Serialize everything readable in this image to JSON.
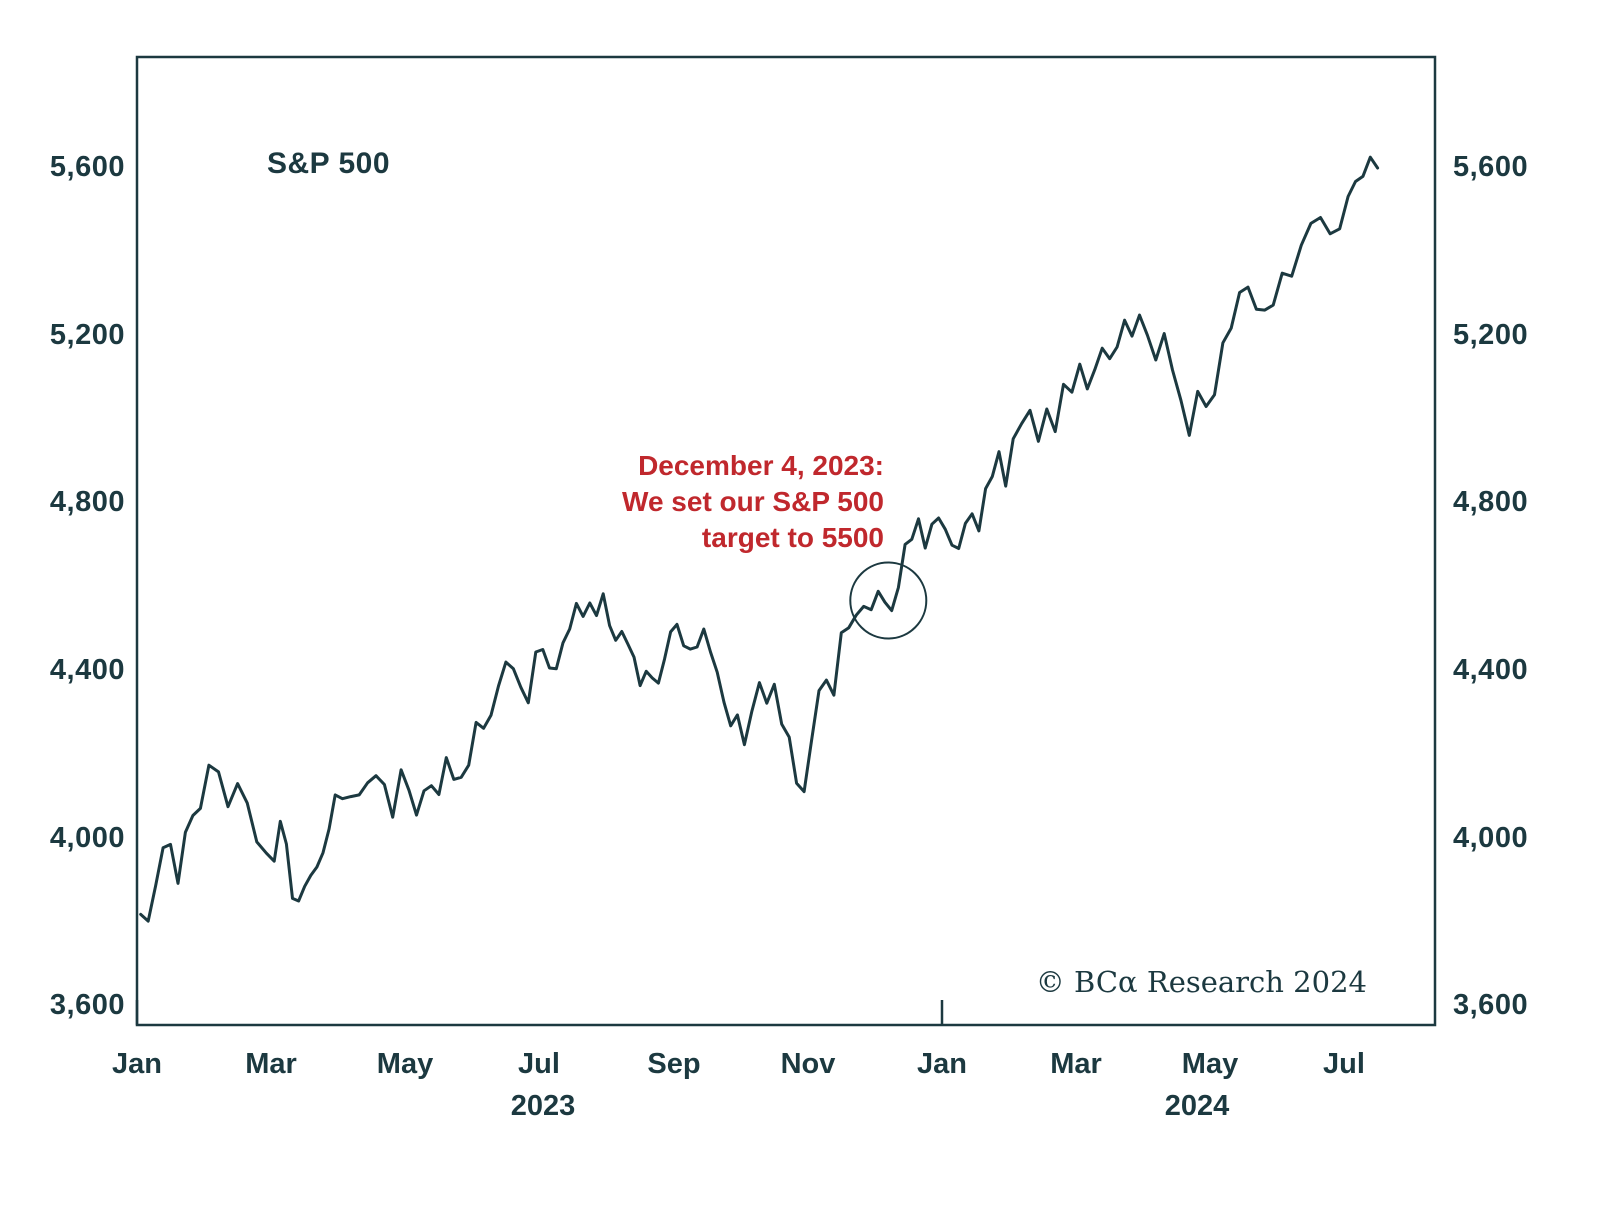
{
  "title": "S&P 500",
  "annotation": {
    "lines": [
      "December 4, 2023:",
      "We set our S&P 500",
      "target to 5500"
    ],
    "color": "#c0282d"
  },
  "copyright": "© BCα Research 2024",
  "colors": {
    "line": "#1c3940",
    "text": "#1c3940",
    "annotation": "#c0282d",
    "background": "#ffffff"
  },
  "chart_data": {
    "type": "line",
    "title": "S&P 500",
    "xlabel": "",
    "ylabel": "",
    "grid": false,
    "legend": "none",
    "y_ticks": [
      {
        "value": 3600,
        "label": "3,600"
      },
      {
        "value": 4000,
        "label": "4,000"
      },
      {
        "value": 4400,
        "label": "4,400"
      },
      {
        "value": 4800,
        "label": "4,800"
      },
      {
        "value": 5200,
        "label": "5,200"
      },
      {
        "value": 5600,
        "label": "5,600"
      }
    ],
    "x_ticks": [
      {
        "month": 0,
        "label": "Jan"
      },
      {
        "month": 2,
        "label": "Mar"
      },
      {
        "month": 4,
        "label": "May"
      },
      {
        "month": 6,
        "label": "Jul"
      },
      {
        "month": 8,
        "label": "Sep"
      },
      {
        "month": 10,
        "label": "Nov"
      },
      {
        "month": 12,
        "label": "Jan"
      },
      {
        "month": 14,
        "label": "Mar"
      },
      {
        "month": 16,
        "label": "May"
      },
      {
        "month": 18,
        "label": "Jul"
      }
    ],
    "year_boundary_tick_months": [
      0,
      12
    ],
    "year_labels": [
      {
        "text": "2023",
        "month_center": 6.05
      },
      {
        "text": "2024",
        "month_center": 15.8
      }
    ],
    "x_range_months": [
      0,
      19.35
    ],
    "y_range": [
      3560,
      5870
    ],
    "annotation_circle": {
      "month": 11.2,
      "value": 4573,
      "radius_px": 38
    },
    "series_monthly": [
      {
        "label": "2023-01",
        "values": [
          3824,
          3808,
          3892,
          3983,
          3991,
          3898,
          4020,
          4060,
          4077
        ]
      },
      {
        "label": "2023-02",
        "values": [
          4180,
          4164,
          4081,
          4136,
          4090,
          3997,
          3970
        ]
      },
      {
        "label": "2023-03",
        "values": [
          3951,
          4046,
          3992,
          3862,
          3856,
          3891,
          3917,
          3937,
          3971,
          4028,
          4109
        ]
      },
      {
        "label": "2023-04",
        "values": [
          4100,
          4105,
          4109,
          4138,
          4155,
          4134,
          4056,
          4169
        ]
      },
      {
        "label": "2023-05",
        "values": [
          4120,
          4061,
          4119,
          4131,
          4110,
          4198,
          4146,
          4151,
          4180
        ]
      },
      {
        "label": "2023-06",
        "values": [
          4282,
          4268,
          4299,
          4369,
          4426,
          4410,
          4366,
          4329,
          4450
        ]
      },
      {
        "label": "2023-07",
        "values": [
          4456,
          4412,
          4410,
          4472,
          4505,
          4566,
          4535,
          4567,
          4537,
          4589
        ]
      },
      {
        "label": "2023-08",
        "values": [
          4513,
          4478,
          4499,
          4469,
          4438,
          4370,
          4404,
          4388,
          4376,
          4433,
          4498
        ]
      },
      {
        "label": "2023-09",
        "values": [
          4516,
          4465,
          4457,
          4462,
          4505,
          4450,
          4402,
          4330,
          4274,
          4300
        ]
      },
      {
        "label": "2023-10",
        "values": [
          4229,
          4309,
          4377,
          4328,
          4373,
          4278,
          4247,
          4137,
          4117
        ]
      },
      {
        "label": "2023-11",
        "values": [
          4238,
          4358,
          4383,
          4347,
          4496,
          4508,
          4538,
          4559,
          4551
        ]
      },
      {
        "label": "2023-12",
        "values": [
          4595,
          4569,
          4549,
          4604,
          4707,
          4719,
          4768,
          4698,
          4755,
          4770
        ]
      },
      {
        "label": "2024-01",
        "values": [
          4743,
          4705,
          4697,
          4757,
          4780,
          4739,
          4840,
          4869,
          4928,
          4846
        ]
      },
      {
        "label": "2024-02",
        "values": [
          4959,
          4995,
          5027,
          4953,
          5030,
          4976,
          5089,
          5070
        ]
      },
      {
        "label": "2024-03",
        "values": [
          5137,
          5078,
          5124,
          5175,
          5150,
          5178,
          5242,
          5204,
          5254
        ]
      },
      {
        "label": "2024-04",
        "values": [
          5206,
          5147,
          5210,
          5123,
          5051,
          4967,
          5072,
          5036
        ]
      },
      {
        "label": "2024-05",
        "values": [
          5064,
          5188,
          5223,
          5308,
          5321,
          5268,
          5266,
          5278
        ]
      },
      {
        "label": "2024-06",
        "values": [
          5354,
          5347,
          5421,
          5473,
          5487,
          5448,
          5460
        ]
      },
      {
        "label": "2024-07",
        "span": 0.55,
        "values": [
          5537,
          5573,
          5585,
          5631,
          5605
        ]
      }
    ]
  }
}
